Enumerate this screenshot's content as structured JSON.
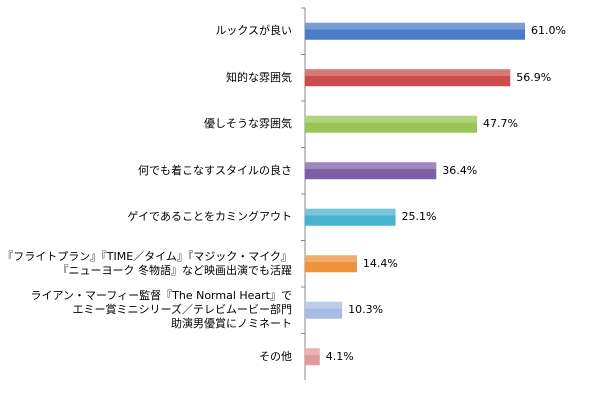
{
  "chart_data": {
    "type": "bar",
    "orientation": "horizontal",
    "title": "",
    "xlabel": "",
    "ylabel": "",
    "xlim": [
      0,
      61
    ],
    "grid": false,
    "legend": "none",
    "categories": [
      "ルックスが良い",
      "知的な雰囲気",
      "優しそうな雰囲気",
      "何でも着こなすスタイルの良さ",
      "ゲイであることをカミングアウト",
      "『フライトプラン』『TIME／タイム』『マジック・マイク』\n『ニューヨーク 冬物語』など映画出演でも活躍",
      "ライアン・マーフィー監督『The Normal Heart』で\nエミー賞ミニシリーズ／テレビムービー部門\n助演男優賞にノミネート",
      "その他"
    ],
    "values": [
      61.0,
      56.9,
      47.7,
      36.4,
      25.1,
      14.4,
      10.3,
      4.1
    ],
    "value_labels": [
      "61.0%",
      "56.9%",
      "47.7%",
      "36.4%",
      "25.1%",
      "14.4%",
      "10.3%",
      "4.1%"
    ],
    "colors": [
      "#4a7bc8",
      "#cc4b4b",
      "#9bc554",
      "#7e5fa7",
      "#47b3cf",
      "#f0913c",
      "#a6bde3",
      "#e49a9a"
    ]
  }
}
